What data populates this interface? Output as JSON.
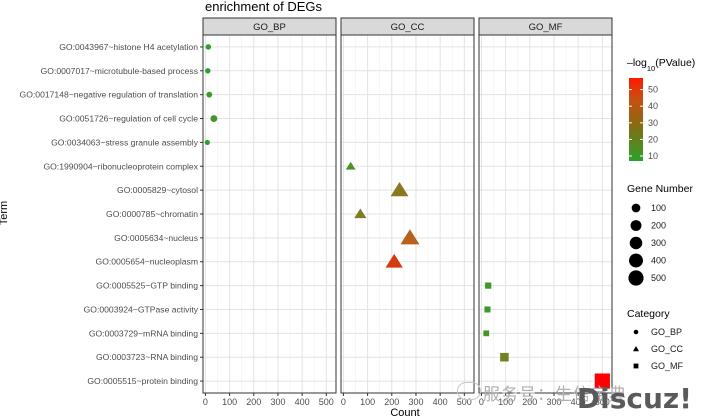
{
  "chart_data": {
    "type": "scatter",
    "title": "enrichment of DEGs",
    "xlabel": "Count",
    "ylabel": "Term",
    "xlim": [
      -10,
      540
    ],
    "xticks": [
      0,
      100,
      200,
      300,
      400,
      500
    ],
    "xtick_labels": [
      "0",
      "100",
      "200",
      "300",
      "400",
      "500"
    ],
    "grid": true,
    "panels": [
      {
        "name": "GO_BP",
        "shape": "circle"
      },
      {
        "name": "GO_CC",
        "shape": "triangle"
      },
      {
        "name": "GO_MF",
        "shape": "square"
      }
    ],
    "terms": [
      "GO:0043967~histone H4 acetylation",
      "GO:0007017~microtubule-based process",
      "GO:0017148~negative regulation of translation",
      "GO:0051726~regulation of cell cycle",
      "GO:0034063~stress granule assembly",
      "GO:1990904~ribonucleoprotein complex",
      "GO:0005829~cytosol",
      "GO:0000785~chromatin",
      "GO:0005634~nucleus",
      "GO:0005654~nucleoplasm",
      "GO:0005525~GTP binding",
      "GO:0003924~GTPase activity",
      "GO:0003729~mRNA binding",
      "GO:0003723~RNA binding",
      "GO:0005515~protein binding"
    ],
    "points": [
      {
        "term": "GO:0043967~histone H4 acetylation",
        "category": "GO_BP",
        "count": 12,
        "neglog10p": 8
      },
      {
        "term": "GO:0007017~microtubule-based process",
        "category": "GO_BP",
        "count": 10,
        "neglog10p": 7
      },
      {
        "term": "GO:0017148~negative regulation of translation",
        "category": "GO_BP",
        "count": 16,
        "neglog10p": 10
      },
      {
        "term": "GO:0051726~regulation of cell cycle",
        "category": "GO_BP",
        "count": 35,
        "neglog10p": 12
      },
      {
        "term": "GO:0034063~stress granule assembly",
        "category": "GO_BP",
        "count": 8,
        "neglog10p": 7
      },
      {
        "term": "GO:1990904~ribonucleoprotein complex",
        "category": "GO_CC",
        "count": 30,
        "neglog10p": 13
      },
      {
        "term": "GO:0005829~cytosol",
        "category": "GO_CC",
        "count": 232,
        "neglog10p": 24
      },
      {
        "term": "GO:0000785~chromatin",
        "category": "GO_CC",
        "count": 70,
        "neglog10p": 22
      },
      {
        "term": "GO:0005634~nucleus",
        "category": "GO_CC",
        "count": 275,
        "neglog10p": 33
      },
      {
        "term": "GO:0005654~nucleoplasm",
        "category": "GO_CC",
        "count": 210,
        "neglog10p": 43
      },
      {
        "term": "GO:0005525~GTP binding",
        "category": "GO_MF",
        "count": 28,
        "neglog10p": 11
      },
      {
        "term": "GO:0003924~GTPase activity",
        "category": "GO_MF",
        "count": 25,
        "neglog10p": 10
      },
      {
        "term": "GO:0003729~mRNA binding",
        "category": "GO_MF",
        "count": 20,
        "neglog10p": 12
      },
      {
        "term": "GO:0003723~RNA binding",
        "category": "GO_MF",
        "count": 95,
        "neglog10p": 20
      },
      {
        "term": "GO:0005515~protein binding",
        "category": "GO_MF",
        "count": 500,
        "neglog10p": 57
      }
    ],
    "legend_color": {
      "title_prefix": "–log",
      "title_sub": "10",
      "title_suffix": "(PValue)",
      "ticks": [
        10,
        20,
        30,
        40,
        50
      ],
      "range": [
        7,
        57
      ],
      "colors": {
        "low": "#2ca02c",
        "mid": "#b5651d",
        "high": "#ff0000"
      }
    },
    "legend_size": {
      "title": "Gene Number",
      "values": [
        100,
        200,
        300,
        400,
        500
      ],
      "labels": [
        "100",
        "200",
        "300",
        "400",
        "500"
      ]
    },
    "legend_shape": {
      "title": "Category",
      "items": [
        {
          "label": "GO_BP",
          "shape": "circle"
        },
        {
          "label": "GO_CC",
          "shape": "triangle"
        },
        {
          "label": "GO_MF",
          "shape": "square"
        }
      ]
    },
    "legend_position": "right"
  },
  "watermark": {
    "service_text": "服务号：生信宝典",
    "logo_text": "Discuz!"
  }
}
